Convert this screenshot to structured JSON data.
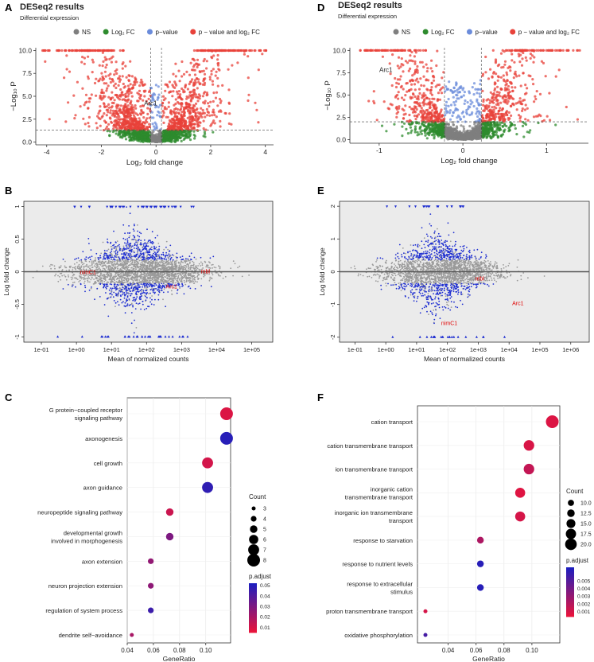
{
  "colors": {
    "ns": "#7f7f7f",
    "log2fc": "#2e8b2e",
    "pval": "#6b8cdb",
    "pval_fc": "#e8423a",
    "ma_sig": "#1f2fd1",
    "ma_ns": "#9a9a9a",
    "ma_label": "#e00000",
    "panel_bg": "#ebebeb"
  },
  "panels": {
    "A": "A",
    "B": "B",
    "C": "C",
    "D": "D",
    "E": "E",
    "F": "F"
  },
  "chart_data": [
    {
      "id": "A",
      "type": "scatter",
      "subtype": "volcano",
      "title": "DESeq2 results",
      "subtitle": "Differential expression",
      "legend": [
        {
          "label": "NS",
          "color": "#7f7f7f"
        },
        {
          "label": "Log₂ FC",
          "color": "#2e8b2e"
        },
        {
          "label": "p−value",
          "color": "#6b8cdb"
        },
        {
          "label": "p − value and log₂ FC",
          "color": "#e8423a"
        }
      ],
      "xlabel": "Log₂ fold change",
      "ylabel": "−Log₁₀ P",
      "xlim": [
        -4.4,
        4.3
      ],
      "ylim": [
        -0.3,
        10.3
      ],
      "xticks": [
        -4,
        -2,
        0,
        2,
        4
      ],
      "yticks": [
        0.0,
        2.5,
        5.0,
        7.5,
        10.0
      ],
      "ytick_labels": [
        "0.0",
        "2.5",
        "5.0",
        "7.5",
        "10.0"
      ],
      "fc_cutoff": 0.2,
      "p_cutoff": 1.3,
      "seed": 11,
      "n_points": 2600,
      "x_spread": 0.95,
      "max_y": 10,
      "points": [
        {
          "x": -0.2,
          "y": 4.0,
          "label": "Arc1"
        }
      ]
    },
    {
      "id": "D",
      "type": "scatter",
      "subtype": "volcano",
      "title": "DESeq2 results",
      "subtitle": "Differential expression",
      "legend": [
        {
          "label": "NS",
          "color": "#7f7f7f"
        },
        {
          "label": "Log₂ FC",
          "color": "#2e8b2e"
        },
        {
          "label": "p−value",
          "color": "#6b8cdb"
        },
        {
          "label": "p − value and log₂ FC",
          "color": "#e8423a"
        }
      ],
      "xlabel": "Log₂ fold change",
      "ylabel": "−Log₁₀ P",
      "xlim": [
        -1.35,
        1.5
      ],
      "ylim": [
        -0.4,
        10.3
      ],
      "xticks": [
        -1,
        0,
        1
      ],
      "yticks": [
        0.0,
        2.5,
        5.0,
        7.5,
        10.0
      ],
      "ytick_labels": [
        "0.0",
        "2.5",
        "5.0",
        "7.5",
        "10.0"
      ],
      "fc_cutoff": 0.22,
      "p_cutoff": 2.0,
      "seed": 23,
      "n_points": 2200,
      "x_spread": 0.33,
      "max_y": 10,
      "points": [
        {
          "x": -0.92,
          "y": 7.6,
          "label": "Arc1"
        }
      ]
    },
    {
      "id": "B",
      "type": "scatter",
      "subtype": "ma",
      "xlabel": "Mean of normalized counts",
      "ylabel": "Log fold change",
      "xlim_log10": [
        -1.5,
        5.6
      ],
      "ylim": [
        -1.08,
        1.08
      ],
      "xtick_labels": [
        "1e-01",
        "1e+00",
        "1e+01",
        "1e+02",
        "1e+03",
        "1e+04",
        "1e+05"
      ],
      "xtick_positions_log10": [
        -1,
        0,
        1,
        2,
        3,
        4,
        5
      ],
      "ytick_labels": [
        "-1",
        "-0.5",
        "0",
        "0.5",
        "1"
      ],
      "ytick_values": [
        -1,
        -0.5,
        0,
        0.5,
        1
      ],
      "seed": 37,
      "n_points": 3000,
      "cap": 1.0,
      "labels": [
        {
          "text": "nimC1",
          "lx": 0.1,
          "y": 0.0
        },
        {
          "text": "mbl",
          "lx": 3.55,
          "y": 0.01
        },
        {
          "text": "Arc1",
          "lx": 2.55,
          "y": -0.22
        }
      ]
    },
    {
      "id": "E",
      "type": "scatter",
      "subtype": "ma",
      "xlabel": "Mean of normalized counts",
      "ylabel": "Log fold change",
      "xlim_log10": [
        -1.5,
        6.6
      ],
      "ylim": [
        -2.15,
        2.15
      ],
      "xtick_labels": [
        "1e-01",
        "1e+00",
        "1e+01",
        "1e+02",
        "1e+03",
        "1e+04",
        "1e+05",
        "1e+06"
      ],
      "xtick_positions_log10": [
        -1,
        0,
        1,
        2,
        3,
        4,
        5,
        6
      ],
      "ytick_labels": [
        "-2",
        "-1",
        "0",
        "1",
        "2"
      ],
      "ytick_values": [
        -2,
        -1,
        0,
        1,
        2
      ],
      "seed": 53,
      "n_points": 2500,
      "cap": 2.0,
      "labels": [
        {
          "text": "Arc1",
          "lx": 4.1,
          "y": -0.95
        },
        {
          "text": "nimC1",
          "lx": 1.8,
          "y": -1.55
        },
        {
          "text": "mbl",
          "lx": 2.9,
          "y": -0.2
        }
      ]
    },
    {
      "id": "C",
      "type": "scatter",
      "subtype": "dotplot",
      "xlabel": "GeneRatio",
      "xlim": [
        0.04,
        0.119
      ],
      "xticks": [
        0.04,
        0.06,
        0.08,
        0.1
      ],
      "xtick_labels": [
        "0.04",
        "0.06",
        "0.08",
        "0.10"
      ],
      "terms": [
        "G protein−coupled receptor\nsignaling pathway",
        "axonogenesis",
        "cell growth",
        "axon guidance",
        "neuropeptide signaling pathway",
        "developmental growth\ninvolved in morphogenesis",
        "axon extension",
        "neuron projection extension",
        "regulation of system process",
        "dendrite self−avoidance"
      ],
      "gene_ratio": [
        0.1159,
        0.1159,
        0.1014,
        0.1014,
        0.0725,
        0.0725,
        0.058,
        0.058,
        0.058,
        0.0435
      ],
      "count": [
        8,
        8,
        7,
        7,
        5,
        5,
        4,
        4,
        4,
        3
      ],
      "p_adjust": [
        0.008,
        0.05,
        0.01,
        0.048,
        0.012,
        0.03,
        0.025,
        0.026,
        0.045,
        0.02
      ],
      "size_legend_title": "Count",
      "size_legend": [
        3,
        4,
        5,
        6,
        7,
        8
      ],
      "color_legend_title": "p.adjust",
      "color_range": [
        0.005,
        0.052
      ],
      "color_legend_ticks": [
        0.01,
        0.02,
        0.03,
        0.04,
        0.05
      ],
      "color_legend_labels": [
        "0.01",
        "0.02",
        "0.03",
        "0.04",
        "0.05"
      ]
    },
    {
      "id": "F",
      "type": "scatter",
      "subtype": "dotplot",
      "xlabel": "GeneRatio",
      "xlim": [
        0.018,
        0.12
      ],
      "xticks": [
        0.04,
        0.06,
        0.08,
        0.1
      ],
      "xtick_labels": [
        "0.04",
        "0.06",
        "0.08",
        "0.10"
      ],
      "terms": [
        "cation transport",
        "cation transmembrane transport",
        "ion transmembrane transport",
        "inorganic cation\ntransmembrane transport",
        "inorganic ion transmembrane\ntransport",
        "response to starvation",
        "response to nutrient levels",
        "response to extracellular\nstimulus",
        "proton transmembrane transport",
        "oxidative phosphorylation"
      ],
      "gene_ratio": [
        0.1146,
        0.0979,
        0.0979,
        0.0916,
        0.0916,
        0.0631,
        0.0631,
        0.0631,
        0.0237,
        0.0237
      ],
      "count": [
        22,
        18,
        18,
        17,
        17,
        11,
        11,
        11,
        6,
        6
      ],
      "p_adjust": [
        0.0007,
        0.0008,
        0.0015,
        0.0006,
        0.0009,
        0.0022,
        0.0065,
        0.0065,
        0.0009,
        0.0055
      ],
      "size_legend_title": "Count",
      "size_legend": [
        10.0,
        12.5,
        15.0,
        17.5,
        20.0
      ],
      "size_legend_labels": [
        "10.0",
        "12.5",
        "15.0",
        "17.5",
        "20.0"
      ],
      "color_legend_title": "p.adjust",
      "color_range": [
        0.0003,
        0.0068
      ],
      "color_legend_ticks": [
        0.001,
        0.002,
        0.003,
        0.004,
        0.005
      ],
      "color_legend_labels": [
        "0.001",
        "0.002",
        "0.003",
        "0.004",
        "0.005"
      ]
    }
  ]
}
